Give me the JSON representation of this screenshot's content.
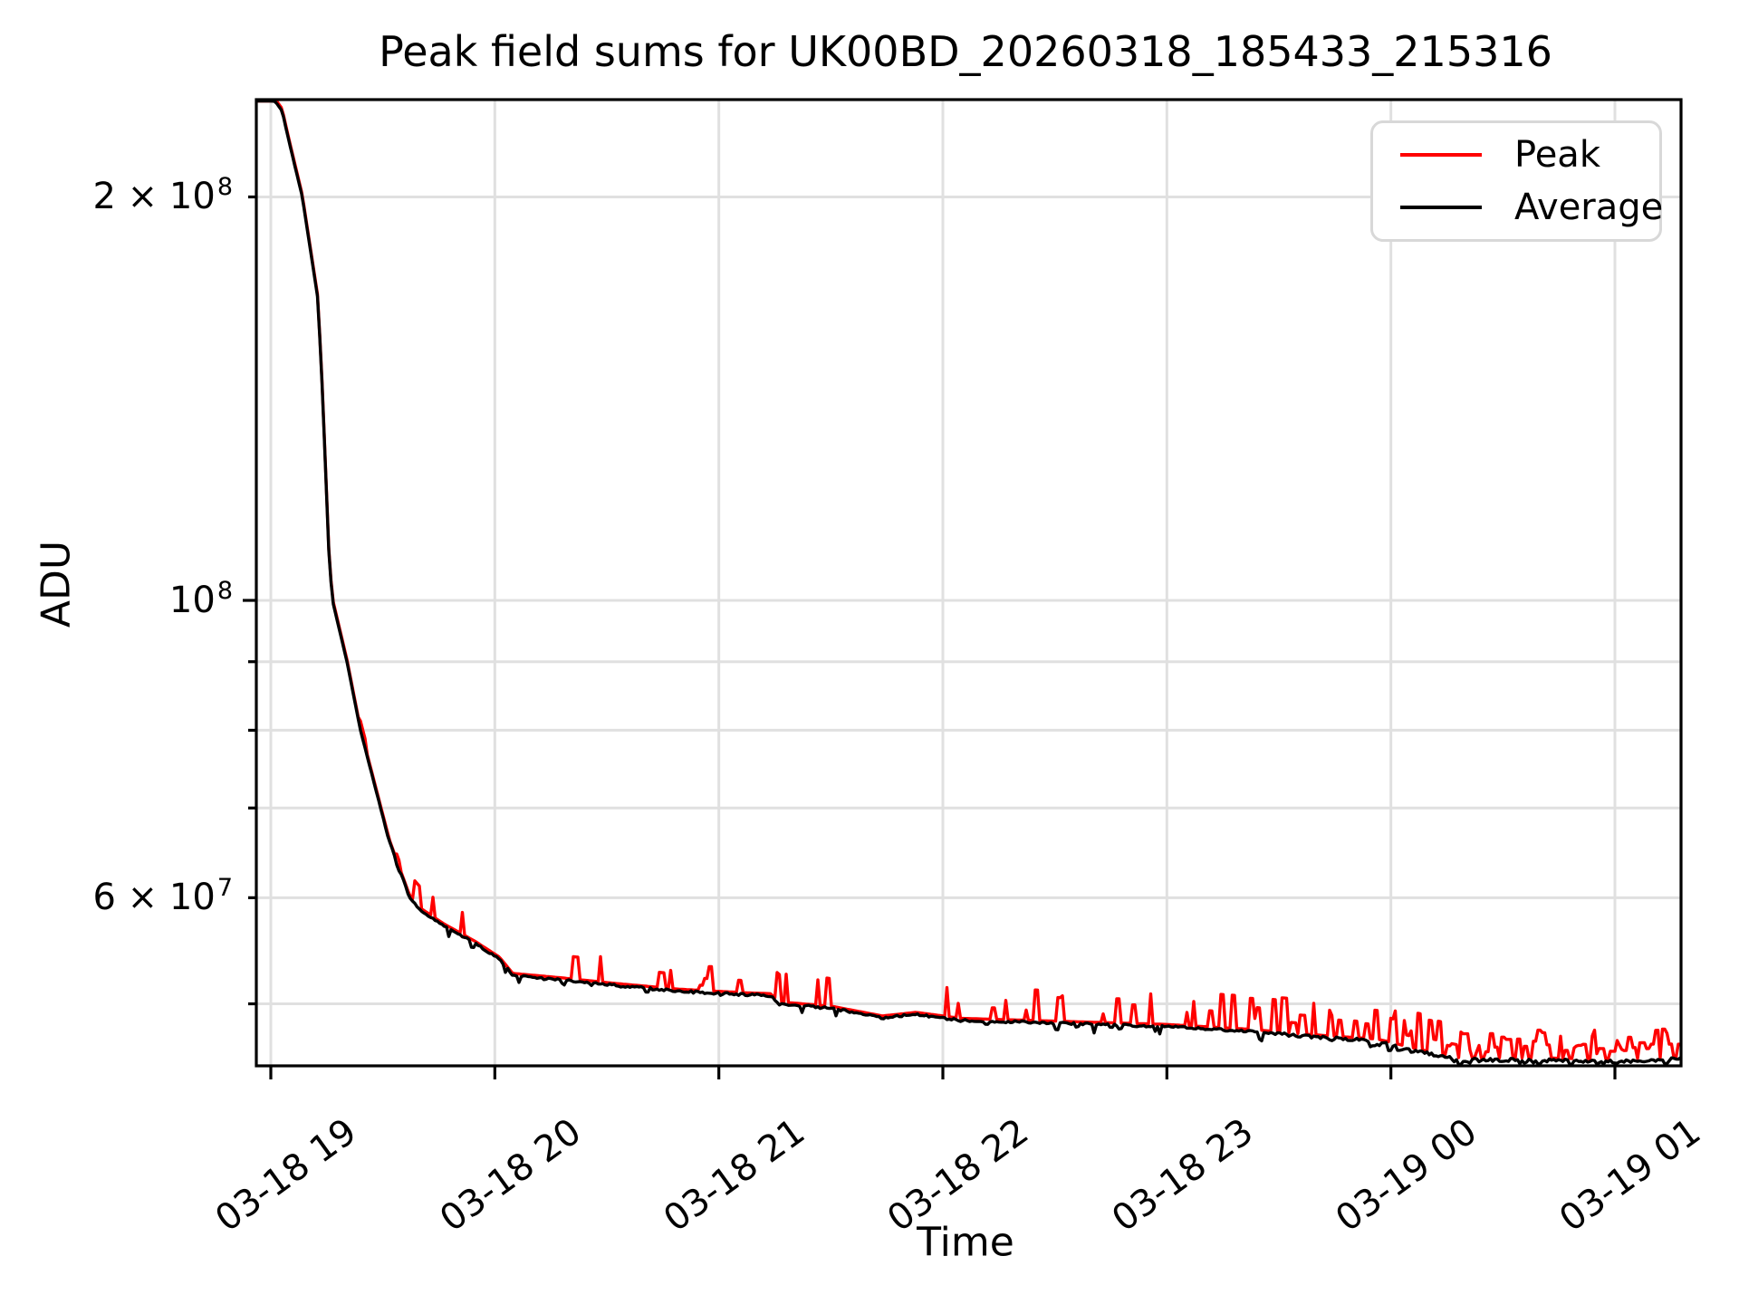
{
  "title": "Peak field sums for UK00BD_20260318_185433_215316",
  "axes": {
    "x_label": "Time",
    "y_label": "ADU",
    "x_tick_labels": [
      "03-18 19",
      "03-18 20",
      "03-18 21",
      "03-18 22",
      "03-18 23",
      "03-19 00",
      "03-19 01"
    ],
    "y_tick_labels": [
      {
        "base": "2 × 10",
        "exp": "8"
      },
      {
        "base": "10",
        "exp": "8"
      },
      {
        "base": "6 × 10",
        "exp": "7"
      }
    ]
  },
  "legend": {
    "entries": [
      {
        "label": "Peak",
        "color": "#ff0000"
      },
      {
        "label": "Average",
        "color": "#000000"
      }
    ]
  },
  "colors": {
    "grid": "#e0e0e0",
    "spine": "#000000",
    "background": "#ffffff",
    "peak": "#ff0000",
    "average": "#000000"
  },
  "chart_data": {
    "type": "line",
    "title": "Peak field sums for UK00BD_20260318_185433_215316",
    "xlabel": "Time",
    "ylabel": "ADU",
    "y_scale": "log",
    "x_axis_unit": "month-day hour",
    "x_tick_hours": [
      19,
      20,
      21,
      22,
      23,
      24,
      25
    ],
    "x_tick_labels": [
      "03-18 19",
      "03-18 20",
      "03-18 21",
      "03-18 22",
      "03-18 23",
      "03-19 00",
      "03-19 01"
    ],
    "x_range_hours": [
      18.935,
      25.3
    ],
    "y_range_adu": [
      44950000,
      236400000
    ],
    "y_labeled_ticks_adu": [
      200000000,
      100000000,
      60000000
    ],
    "y_grid_ticks_adu": [
      200000000,
      100000000,
      90000000,
      80000000,
      70000000,
      60000000,
      50000000
    ],
    "grid": "both",
    "legend_position": "upper right",
    "series": [
      {
        "name": "Peak",
        "color": "#ff0000",
        "description": "Same as Average plus short upward transient spikes; spike density and frequency increase toward the end of the night",
        "spike_segments_t0_t1_density_rmin_rmax": [
          [
            19.0,
            19.55,
            0.015,
            1.008,
            1.03
          ],
          [
            19.55,
            20.1,
            0.05,
            1.012,
            1.045
          ],
          [
            20.1,
            20.9,
            0.07,
            1.012,
            1.05
          ],
          [
            20.9,
            21.8,
            0.1,
            1.012,
            1.055
          ],
          [
            21.8,
            22.9,
            0.12,
            1.015,
            1.06
          ],
          [
            22.9,
            23.6,
            0.16,
            1.018,
            1.065
          ],
          [
            23.6,
            24.25,
            0.3,
            1.018,
            1.07
          ],
          [
            24.25,
            25.32,
            0.62,
            1.012,
            1.055
          ]
        ]
      },
      {
        "name": "Average",
        "color": "#000000",
        "anchors_t_adu": [
          [
            18.935,
            236400000
          ],
          [
            19.02,
            235700000
          ],
          [
            19.05,
            232000000
          ],
          [
            19.08,
            220400000
          ],
          [
            19.14,
            200200000
          ],
          [
            19.21,
            167900000
          ],
          [
            19.23,
            143700000
          ],
          [
            19.26,
            107700000
          ],
          [
            19.275,
            100000000
          ],
          [
            19.34,
            90000000
          ],
          [
            19.4,
            80000000
          ],
          [
            19.49,
            70000000
          ],
          [
            19.53,
            66000000
          ],
          [
            19.62,
            60000000
          ],
          [
            19.67,
            58700000
          ],
          [
            19.77,
            57200000
          ],
          [
            19.91,
            55500000
          ],
          [
            20.02,
            54000000
          ],
          [
            20.08,
            52500000
          ],
          [
            20.3,
            52100000
          ],
          [
            20.54,
            51600000
          ],
          [
            20.82,
            51100000
          ],
          [
            21.1,
            50800000
          ],
          [
            21.23,
            50700000
          ],
          [
            21.27,
            50000000
          ],
          [
            21.51,
            49600000
          ],
          [
            21.73,
            48800000
          ],
          [
            21.88,
            49100000
          ],
          [
            22.08,
            48600000
          ],
          [
            22.44,
            48400000
          ],
          [
            22.99,
            48100000
          ],
          [
            23.37,
            47700000
          ],
          [
            23.61,
            47300000
          ],
          [
            23.94,
            46900000
          ],
          [
            24.12,
            46100000
          ],
          [
            24.31,
            45400000
          ],
          [
            24.67,
            45400000
          ],
          [
            25.03,
            45300000
          ],
          [
            25.32,
            45500000
          ]
        ],
        "dip_segments_t0_t1_density_rmin_rmax": [
          [
            19.55,
            23.6,
            0.04,
            0.985,
            0.997
          ],
          [
            23.6,
            25.32,
            0.12,
            0.99,
            0.998
          ]
        ],
        "noise_segments_t0_t1_amp": [
          [
            18.9,
            19.5,
            0.0005
          ],
          [
            19.5,
            20.5,
            0.0015
          ],
          [
            20.5,
            23.5,
            0.002
          ],
          [
            23.5,
            24.3,
            0.0025
          ],
          [
            24.3,
            25.32,
            0.003
          ]
        ]
      }
    ]
  }
}
